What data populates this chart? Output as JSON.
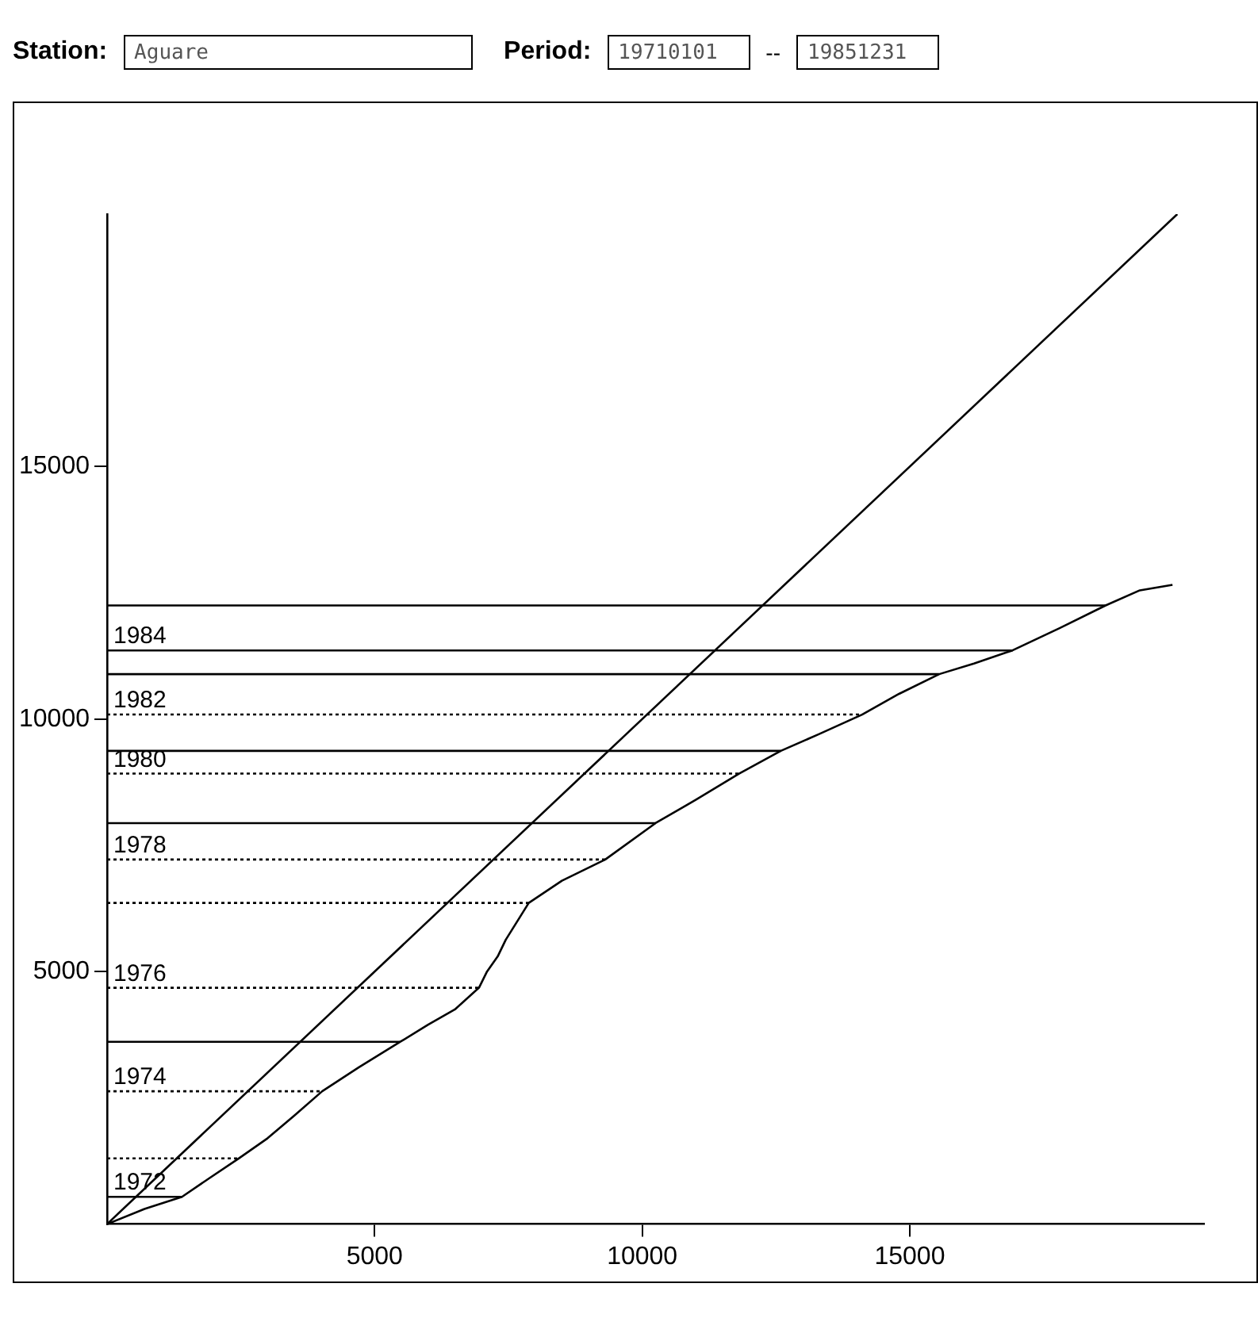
{
  "chart_data": {
    "type": "line",
    "annotations": [
      "Station:",
      "Aguare",
      "Period:",
      "19710101",
      "--",
      "19851231",
      {
        "text": "1972",
        "y": 540
      },
      {
        "text": "1974",
        "y": 2630
      },
      {
        "text": "1976",
        "y": 4680
      },
      {
        "text": "1978",
        "y": 7220
      },
      {
        "text": "1980",
        "y": 8920
      },
      {
        "text": "1982",
        "y": 10090
      },
      {
        "text": "1984",
        "y": 11360
      }
    ],
    "xlim": [
      0,
      20500
    ],
    "ylim": [
      0,
      20000
    ],
    "xticks": [
      5000,
      10000,
      15000
    ],
    "yticks": [
      5000,
      10000,
      15000
    ],
    "grid": false,
    "legend": false,
    "marker": "none",
    "series": [
      {
        "color": "#000000",
        "x": [
          0,
          20000
        ],
        "values": [
          0,
          20000
        ],
        "line_style": "solid"
      },
      {
        "color": "#000000",
        "x": [
          0,
          700,
          1400,
          1900,
          2460,
          3000,
          3500,
          4020,
          4700,
          5480,
          6000,
          6500,
          6950,
          7100,
          7300,
          7450,
          7880,
          8500,
          9310,
          10250,
          11000,
          11810,
          12590,
          13300,
          14110,
          14800,
          15550,
          16200,
          16920,
          17800,
          18660,
          19300,
          19910
        ],
        "values": [
          0,
          300,
          540,
          900,
          1300,
          1700,
          2150,
          2630,
          3100,
          3610,
          3950,
          4250,
          4680,
          5000,
          5300,
          5630,
          6360,
          6800,
          7220,
          7940,
          8400,
          8920,
          9370,
          9700,
          10090,
          10500,
          10890,
          11100,
          11360,
          11800,
          12250,
          12550,
          12660
        ],
        "line_style": "solid"
      },
      {
        "color": "#000000",
        "x": [
          0,
          1400
        ],
        "values": [
          540,
          540
        ],
        "line_style": "solid"
      },
      {
        "color": "#000000",
        "x": [
          0,
          2460
        ],
        "values": [
          1300,
          1300
        ],
        "line_style": "dotted"
      },
      {
        "color": "#000000",
        "x": [
          0,
          4020
        ],
        "values": [
          2630,
          2630
        ],
        "line_style": "dotted"
      },
      {
        "color": "#000000",
        "x": [
          0,
          5480
        ],
        "values": [
          3610,
          3610
        ],
        "line_style": "solid"
      },
      {
        "color": "#000000",
        "x": [
          0,
          6950
        ],
        "values": [
          4680,
          4680
        ],
        "line_style": "dotted"
      },
      {
        "color": "#000000",
        "x": [
          0,
          7880
        ],
        "values": [
          6360,
          6360
        ],
        "line_style": "dotted"
      },
      {
        "color": "#000000",
        "x": [
          0,
          9310
        ],
        "values": [
          7220,
          7220
        ],
        "line_style": "dotted"
      },
      {
        "color": "#000000",
        "x": [
          0,
          10250
        ],
        "values": [
          7940,
          7940
        ],
        "line_style": "solid"
      },
      {
        "color": "#000000",
        "x": [
          0,
          11810
        ],
        "values": [
          8920,
          8920
        ],
        "line_style": "dotted"
      },
      {
        "color": "#000000",
        "x": [
          0,
          12590
        ],
        "values": [
          9370,
          9370
        ],
        "line_style": "solid"
      },
      {
        "color": "#000000",
        "x": [
          0,
          14110
        ],
        "values": [
          10090,
          10090
        ],
        "line_style": "dotted"
      },
      {
        "color": "#000000",
        "x": [
          0,
          15550
        ],
        "values": [
          10890,
          10890
        ],
        "line_style": "solid"
      },
      {
        "color": "#000000",
        "x": [
          0,
          16920
        ],
        "values": [
          11360,
          11360
        ],
        "line_style": "solid"
      },
      {
        "color": "#000000",
        "x": [
          0,
          18660
        ],
        "values": [
          12250,
          12250
        ],
        "line_style": "solid"
      }
    ]
  }
}
